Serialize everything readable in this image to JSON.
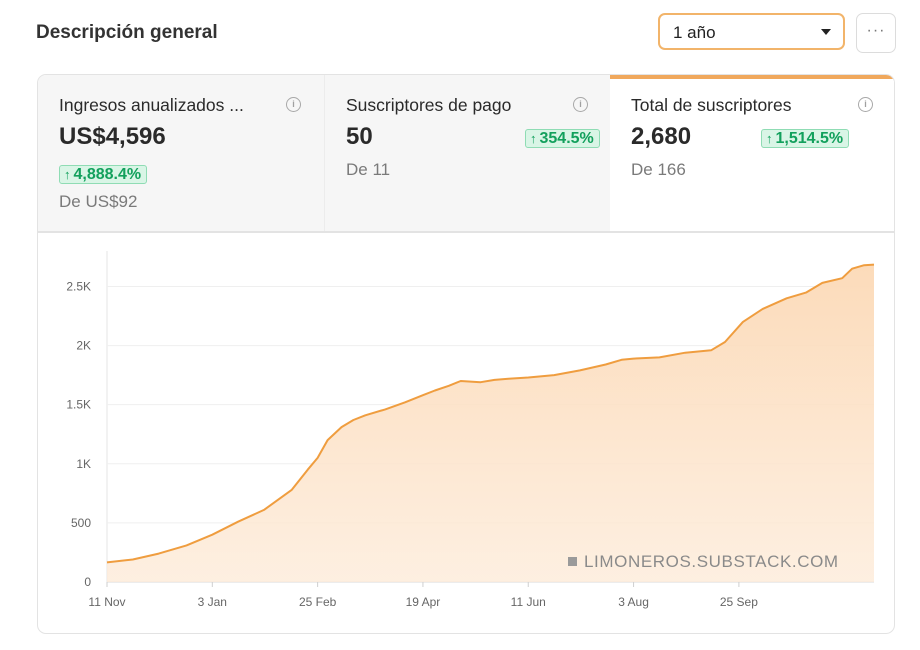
{
  "header": {
    "title": "Descripción general",
    "period": "1 año",
    "more": "···"
  },
  "stats": [
    {
      "label": "Ingresos anualizados ...",
      "value": "US$4,596",
      "change": "4,888.4%",
      "from": "De US$92",
      "info": "i"
    },
    {
      "label": "Suscriptores de pago",
      "value": "50",
      "change": "354.5%",
      "from": "De 11",
      "info": "i"
    },
    {
      "label": "Total de suscriptores",
      "value": "2,680",
      "change": "1,514.5%",
      "from": "De 166",
      "info": "i"
    }
  ],
  "badge_arrow": "↑",
  "watermark": "LIMONEROS.SUBSTACK.COM",
  "colors": {
    "accent": "#f0a85c",
    "line": "#ef9d3f",
    "fill": "#fde5cc",
    "positive": "#12a05c"
  },
  "chart_data": {
    "type": "area",
    "title": "Total de suscriptores",
    "xlabel": "",
    "ylabel": "",
    "ylim": [
      0,
      2800
    ],
    "xlim": [
      0,
      386
    ],
    "x_ticks": [
      {
        "label": "11 Nov",
        "day": 0
      },
      {
        "label": "3 Jan",
        "day": 53
      },
      {
        "label": "25 Feb",
        "day": 106
      },
      {
        "label": "19 Apr",
        "day": 159
      },
      {
        "label": "11 Jun",
        "day": 212
      },
      {
        "label": "3 Aug",
        "day": 265
      },
      {
        "label": "25 Sep",
        "day": 318
      }
    ],
    "y_ticks": [
      {
        "label": "0",
        "value": 0
      },
      {
        "label": "500",
        "value": 500
      },
      {
        "label": "1K",
        "value": 1000
      },
      {
        "label": "1.5K",
        "value": 1500
      },
      {
        "label": "2K",
        "value": 2000
      },
      {
        "label": "2.5K",
        "value": 2500
      }
    ],
    "grid": true,
    "series": [
      {
        "name": "Total de suscriptores",
        "x": [
          0,
          13,
          26,
          40,
          53,
          66,
          79,
          93,
          101,
          106,
          111,
          118,
          124,
          130,
          140,
          150,
          159,
          165,
          172,
          178,
          188,
          195,
          202,
          212,
          225,
          238,
          251,
          259,
          265,
          278,
          291,
          304,
          311,
          320,
          330,
          342,
          352,
          360,
          370,
          375,
          381,
          386
        ],
        "values": [
          166,
          190,
          240,
          310,
          400,
          510,
          610,
          780,
          950,
          1050,
          1200,
          1310,
          1370,
          1410,
          1460,
          1520,
          1580,
          1620,
          1660,
          1700,
          1690,
          1710,
          1720,
          1730,
          1750,
          1790,
          1840,
          1880,
          1890,
          1900,
          1940,
          1960,
          2030,
          2200,
          2310,
          2400,
          2450,
          2530,
          2570,
          2650,
          2680,
          2685
        ]
      }
    ]
  }
}
